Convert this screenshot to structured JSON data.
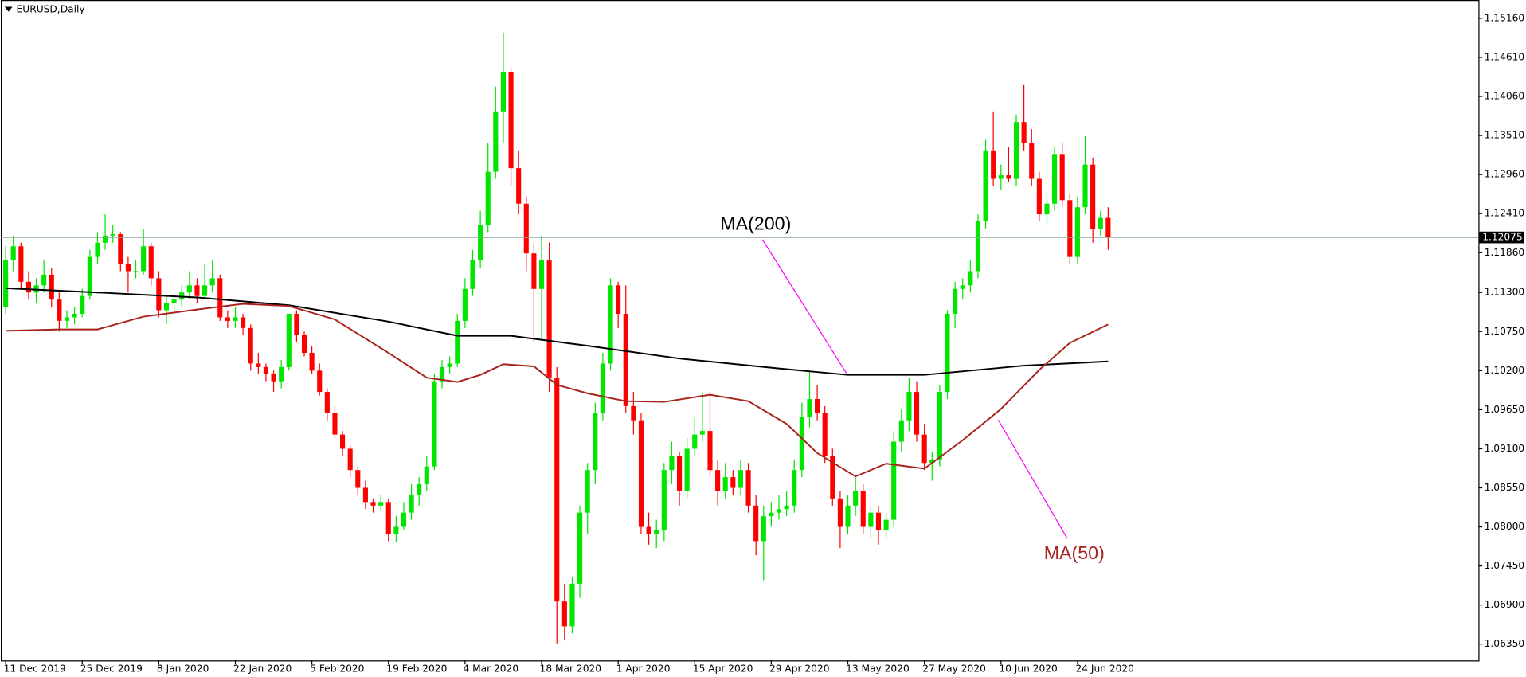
{
  "chart_data": {
    "type": "candlestick",
    "title": "EURUSD,Daily",
    "categories": [
      "11 Dec 2019",
      null,
      null,
      null,
      null,
      null,
      null,
      null,
      null,
      null,
      "25 Dec 2019",
      null,
      null,
      null,
      null,
      null,
      null,
      null,
      null,
      null,
      "8 Jan 2020",
      null,
      null,
      null,
      null,
      null,
      null,
      null,
      null,
      null,
      "22 Jan 2020",
      null,
      null,
      null,
      null,
      null,
      null,
      null,
      null,
      null,
      "5 Feb 2020",
      null,
      null,
      null,
      null,
      null,
      null,
      null,
      null,
      null,
      "19 Feb 2020",
      null,
      null,
      null,
      null,
      null,
      null,
      null,
      null,
      null,
      "4 Mar 2020",
      null,
      null,
      null,
      null,
      null,
      null,
      null,
      null,
      null,
      "18 Mar 2020",
      null,
      null,
      null,
      null,
      null,
      null,
      null,
      null,
      null,
      "1 Apr 2020",
      null,
      null,
      null,
      null,
      null,
      null,
      null,
      null,
      null,
      "15 Apr 2020",
      null,
      null,
      null,
      null,
      null,
      null,
      null,
      null,
      null,
      "29 Apr 2020",
      null,
      null,
      null,
      null,
      null,
      null,
      null,
      null,
      null,
      "13 May 2020",
      null,
      null,
      null,
      null,
      null,
      null,
      null,
      null,
      null,
      "27 May 2020",
      null,
      null,
      null,
      null,
      null,
      null,
      null,
      null,
      null,
      "10 Jun 2020",
      null,
      null,
      null,
      null,
      null,
      null,
      null,
      null,
      null,
      "24 Jun 2020",
      null,
      null,
      null,
      null
    ],
    "ohlc": [
      [
        1.111,
        1.1195,
        1.11,
        1.1175
      ],
      [
        1.1175,
        1.121,
        1.116,
        1.1195
      ],
      [
        1.1195,
        1.12,
        1.1135,
        1.1145
      ],
      [
        1.1145,
        1.116,
        1.112,
        1.113
      ],
      [
        1.113,
        1.115,
        1.1115,
        1.114
      ],
      [
        1.114,
        1.1175,
        1.113,
        1.1155
      ],
      [
        1.1155,
        1.1165,
        1.111,
        1.112
      ],
      [
        1.112,
        1.113,
        1.1075,
        1.109
      ],
      [
        1.109,
        1.1105,
        1.108,
        1.1095
      ],
      [
        1.1095,
        1.111,
        1.1085,
        1.11
      ],
      [
        1.11,
        1.1135,
        1.1095,
        1.1125
      ],
      [
        1.1125,
        1.119,
        1.112,
        1.118
      ],
      [
        1.118,
        1.1215,
        1.117,
        1.12
      ],
      [
        1.12,
        1.124,
        1.119,
        1.121
      ],
      [
        1.121,
        1.1225,
        1.12,
        1.1212
      ],
      [
        1.1212,
        1.1215,
        1.116,
        1.117
      ],
      [
        1.117,
        1.118,
        1.113,
        1.116
      ],
      [
        1.116,
        1.1175,
        1.115,
        1.116
      ],
      [
        1.116,
        1.122,
        1.1155,
        1.1195
      ],
      [
        1.1195,
        1.12,
        1.114,
        1.115
      ],
      [
        1.115,
        1.116,
        1.1095,
        1.1105
      ],
      [
        1.1105,
        1.1125,
        1.1085,
        1.1115
      ],
      [
        1.1115,
        1.113,
        1.11,
        1.112
      ],
      [
        1.112,
        1.114,
        1.111,
        1.113
      ],
      [
        1.113,
        1.116,
        1.112,
        1.114
      ],
      [
        1.114,
        1.115,
        1.1115,
        1.1125
      ],
      [
        1.1125,
        1.117,
        1.112,
        1.114
      ],
      [
        1.114,
        1.1175,
        1.113,
        1.115
      ],
      [
        1.115,
        1.1155,
        1.109,
        1.1095
      ],
      [
        1.1095,
        1.1105,
        1.108,
        1.109
      ],
      [
        1.109,
        1.111,
        1.108,
        1.1095
      ],
      [
        1.1095,
        1.11,
        1.107,
        1.108
      ],
      [
        1.108,
        1.1085,
        1.102,
        1.103
      ],
      [
        1.103,
        1.1045,
        1.1015,
        1.1025
      ],
      [
        1.1025,
        1.103,
        1.1005,
        1.1015
      ],
      [
        1.1015,
        1.102,
        1.099,
        1.1005
      ],
      [
        1.1005,
        1.1035,
        1.0995,
        1.1025
      ],
      [
        1.1025,
        1.11,
        1.102,
        1.11
      ],
      [
        1.11,
        1.1105,
        1.106,
        1.107
      ],
      [
        1.107,
        1.1075,
        1.104,
        1.1045
      ],
      [
        1.1045,
        1.1055,
        1.1015,
        1.102
      ],
      [
        1.102,
        1.103,
        1.0985,
        1.099
      ],
      [
        1.099,
        1.0995,
        1.095,
        1.096
      ],
      [
        1.096,
        1.097,
        1.0925,
        1.093
      ],
      [
        1.093,
        1.0935,
        1.09,
        1.091
      ],
      [
        1.091,
        1.0915,
        1.087,
        1.088
      ],
      [
        1.088,
        1.0885,
        1.0845,
        1.0855
      ],
      [
        1.0855,
        1.0865,
        1.0825,
        1.0835
      ],
      [
        1.0835,
        1.084,
        1.082,
        1.083
      ],
      [
        1.083,
        1.0845,
        1.0825,
        1.0835
      ],
      [
        1.0835,
        1.084,
        1.078,
        1.079
      ],
      [
        1.079,
        1.0815,
        1.0778,
        1.08
      ],
      [
        1.08,
        1.0835,
        1.0795,
        1.082
      ],
      [
        1.082,
        1.086,
        1.081,
        1.0845
      ],
      [
        1.0845,
        1.087,
        1.083,
        1.086
      ],
      [
        1.086,
        1.09,
        1.085,
        1.0885
      ],
      [
        1.0885,
        1.1015,
        1.088,
        1.1005
      ],
      [
        1.1005,
        1.1035,
        1.0995,
        1.1025
      ],
      [
        1.1025,
        1.104,
        1.1015,
        1.103
      ],
      [
        1.103,
        1.11,
        1.1025,
        1.109
      ],
      [
        1.109,
        1.115,
        1.108,
        1.1135
      ],
      [
        1.1135,
        1.119,
        1.1125,
        1.1175
      ],
      [
        1.1175,
        1.1245,
        1.1165,
        1.1225
      ],
      [
        1.1225,
        1.134,
        1.1215,
        1.13
      ],
      [
        1.13,
        1.142,
        1.129,
        1.1385
      ],
      [
        1.1385,
        1.1496,
        1.134,
        1.144
      ],
      [
        1.144,
        1.1445,
        1.128,
        1.1305
      ],
      [
        1.1305,
        1.133,
        1.124,
        1.1255
      ],
      [
        1.1255,
        1.1265,
        1.116,
        1.1185
      ],
      [
        1.1185,
        1.12,
        1.106,
        1.1135
      ],
      [
        1.1135,
        1.121,
        1.1065,
        1.1175
      ],
      [
        1.1175,
        1.12,
        1.099,
        1.101
      ],
      [
        1.101,
        1.1025,
        1.0636,
        1.0695
      ],
      [
        1.0695,
        1.072,
        1.064,
        1.066
      ],
      [
        1.066,
        1.073,
        1.065,
        1.072
      ],
      [
        1.072,
        1.083,
        1.07,
        1.082
      ],
      [
        1.082,
        1.089,
        1.079,
        1.088
      ],
      [
        1.088,
        1.0975,
        1.086,
        1.096
      ],
      [
        1.096,
        1.1045,
        1.095,
        1.103
      ],
      [
        1.103,
        1.115,
        1.102,
        1.114
      ],
      [
        1.114,
        1.1145,
        1.108,
        1.11
      ],
      [
        1.11,
        1.114,
        1.096,
        1.097
      ],
      [
        1.097,
        1.099,
        1.093,
        1.095
      ],
      [
        1.095,
        1.096,
        1.079,
        1.08
      ],
      [
        1.08,
        1.082,
        1.0775,
        1.079
      ],
      [
        1.079,
        1.081,
        1.077,
        1.0795
      ],
      [
        1.0795,
        1.089,
        1.078,
        1.088
      ],
      [
        1.088,
        1.092,
        1.086,
        1.09
      ],
      [
        1.09,
        1.0905,
        1.083,
        1.085
      ],
      [
        1.085,
        1.0925,
        1.084,
        1.091
      ],
      [
        1.091,
        1.0955,
        1.09,
        1.093
      ],
      [
        1.093,
        1.099,
        1.092,
        1.0935
      ],
      [
        1.0935,
        1.099,
        1.087,
        1.088
      ],
      [
        1.088,
        1.0895,
        1.083,
        1.085
      ],
      [
        1.085,
        1.089,
        1.084,
        1.087
      ],
      [
        1.087,
        1.088,
        1.0845,
        1.0855
      ],
      [
        1.0855,
        1.0895,
        1.0845,
        1.088
      ],
      [
        1.088,
        1.089,
        1.082,
        1.083
      ],
      [
        1.083,
        1.0845,
        1.076,
        1.078
      ],
      [
        1.078,
        1.083,
        1.0725,
        1.0815
      ],
      [
        1.0815,
        1.0835,
        1.08,
        1.082
      ],
      [
        1.082,
        1.0845,
        1.081,
        1.0825
      ],
      [
        1.0825,
        1.085,
        1.0815,
        1.083
      ],
      [
        1.083,
        1.0895,
        1.082,
        1.088
      ],
      [
        1.088,
        1.0975,
        1.087,
        1.0955
      ],
      [
        1.0955,
        1.102,
        1.094,
        1.098
      ],
      [
        1.098,
        1.1,
        1.095,
        1.096
      ],
      [
        1.096,
        1.097,
        1.089,
        1.09
      ],
      [
        1.09,
        1.091,
        1.083,
        1.084
      ],
      [
        1.084,
        1.085,
        1.077,
        1.08
      ],
      [
        1.08,
        1.0845,
        1.079,
        1.083
      ],
      [
        1.083,
        1.087,
        1.0815,
        1.085
      ],
      [
        1.085,
        1.086,
        1.079,
        1.08
      ],
      [
        1.08,
        1.083,
        1.0785,
        1.082
      ],
      [
        1.082,
        1.083,
        1.0775,
        1.0795
      ],
      [
        1.0795,
        1.082,
        1.0785,
        1.081
      ],
      [
        1.081,
        1.0935,
        1.08,
        1.092
      ],
      [
        1.092,
        1.0965,
        1.0905,
        1.095
      ],
      [
        1.095,
        1.101,
        1.0935,
        1.099
      ],
      [
        1.099,
        1.1005,
        1.092,
        1.093
      ],
      [
        1.093,
        1.0945,
        1.088,
        1.089
      ],
      [
        1.089,
        1.0905,
        1.0865,
        1.0895
      ],
      [
        1.0895,
        1.1,
        1.0885,
        1.099
      ],
      [
        1.099,
        1.1105,
        1.098,
        1.11
      ],
      [
        1.11,
        1.1145,
        1.108,
        1.1135
      ],
      [
        1.1135,
        1.115,
        1.112,
        1.114
      ],
      [
        1.114,
        1.1175,
        1.113,
        1.116
      ],
      [
        1.116,
        1.124,
        1.115,
        1.123
      ],
      [
        1.123,
        1.1345,
        1.122,
        1.133
      ],
      [
        1.133,
        1.1385,
        1.128,
        1.129
      ],
      [
        1.129,
        1.131,
        1.1275,
        1.1295
      ],
      [
        1.1295,
        1.1335,
        1.1285,
        1.129
      ],
      [
        1.129,
        1.138,
        1.128,
        1.137
      ],
      [
        1.137,
        1.1422,
        1.133,
        1.134
      ],
      [
        1.134,
        1.136,
        1.128,
        1.129
      ],
      [
        1.129,
        1.13,
        1.123,
        1.124
      ],
      [
        1.124,
        1.127,
        1.1225,
        1.1255
      ],
      [
        1.1255,
        1.1335,
        1.1245,
        1.1325
      ],
      [
        1.1325,
        1.134,
        1.125,
        1.126
      ],
      [
        1.126,
        1.127,
        1.117,
        1.118
      ],
      [
        1.118,
        1.1265,
        1.117,
        1.125
      ],
      [
        1.125,
        1.135,
        1.124,
        1.131
      ],
      [
        1.131,
        1.132,
        1.12,
        1.122
      ],
      [
        1.122,
        1.1245,
        1.121,
        1.1235
      ],
      [
        1.1235,
        1.125,
        1.119,
        1.12075
      ]
    ],
    "bull_color": "#00e600",
    "bear_color": "#ff0000",
    "series": [
      {
        "name": "MA(200)",
        "color": "#000000",
        "x": [
          0,
          12,
          25,
          37,
          50,
          59,
          66,
          76,
          88,
          101,
          110,
          120,
          133,
          144
        ],
        "values": [
          1.1136,
          1.113,
          1.1123,
          1.1112,
          1.1089,
          1.1069,
          1.1069,
          1.1055,
          1.1037,
          1.1023,
          1.1014,
          1.1014,
          1.1027,
          1.1033
        ]
      },
      {
        "name": "MA(50)",
        "color": "#a8231d",
        "x": [
          0,
          7,
          12,
          18,
          25,
          31,
          37,
          43,
          50,
          55,
          59,
          62,
          65,
          69,
          72,
          76,
          81,
          86,
          92,
          97,
          102,
          106,
          111,
          115,
          120,
          125,
          130,
          135,
          139,
          144
        ],
        "values": [
          1.1076,
          1.1078,
          1.1078,
          1.1096,
          1.1106,
          1.1114,
          1.1111,
          1.1092,
          1.1045,
          1.101,
          1.1004,
          1.1014,
          1.1029,
          1.1026,
          1.1,
          1.0988,
          1.0977,
          1.0976,
          1.0986,
          1.0977,
          1.0945,
          1.0904,
          1.0871,
          1.0889,
          1.0882,
          1.0922,
          1.0966,
          1.1021,
          1.1059,
          1.1085
        ]
      }
    ],
    "last_price": 1.12075,
    "ylim": [
      1.0612,
      1.1539
    ],
    "yticks": [
      {
        "value": 1.1516,
        "label": "1.15160"
      },
      {
        "value": 1.1461,
        "label": "1.14610"
      },
      {
        "value": 1.1406,
        "label": "1.14060"
      },
      {
        "value": 1.1351,
        "label": "1.13510"
      },
      {
        "value": 1.1296,
        "label": "1.12960"
      },
      {
        "value": 1.1241,
        "label": "1.12410"
      },
      {
        "value": 1.1186,
        "label": "1.11860"
      },
      {
        "value": 1.113,
        "label": "1.11300"
      },
      {
        "value": 1.1075,
        "label": "1.10750"
      },
      {
        "value": 1.102,
        "label": "1.10200"
      },
      {
        "value": 1.0965,
        "label": "1.09650"
      },
      {
        "value": 1.091,
        "label": "1.09100"
      },
      {
        "value": 1.0855,
        "label": "1.08550"
      },
      {
        "value": 1.08,
        "label": "1.08000"
      },
      {
        "value": 1.0745,
        "label": "1.07450"
      },
      {
        "value": 1.069,
        "label": "1.06900"
      },
      {
        "value": 1.0635,
        "label": "1.06350"
      }
    ]
  }
}
